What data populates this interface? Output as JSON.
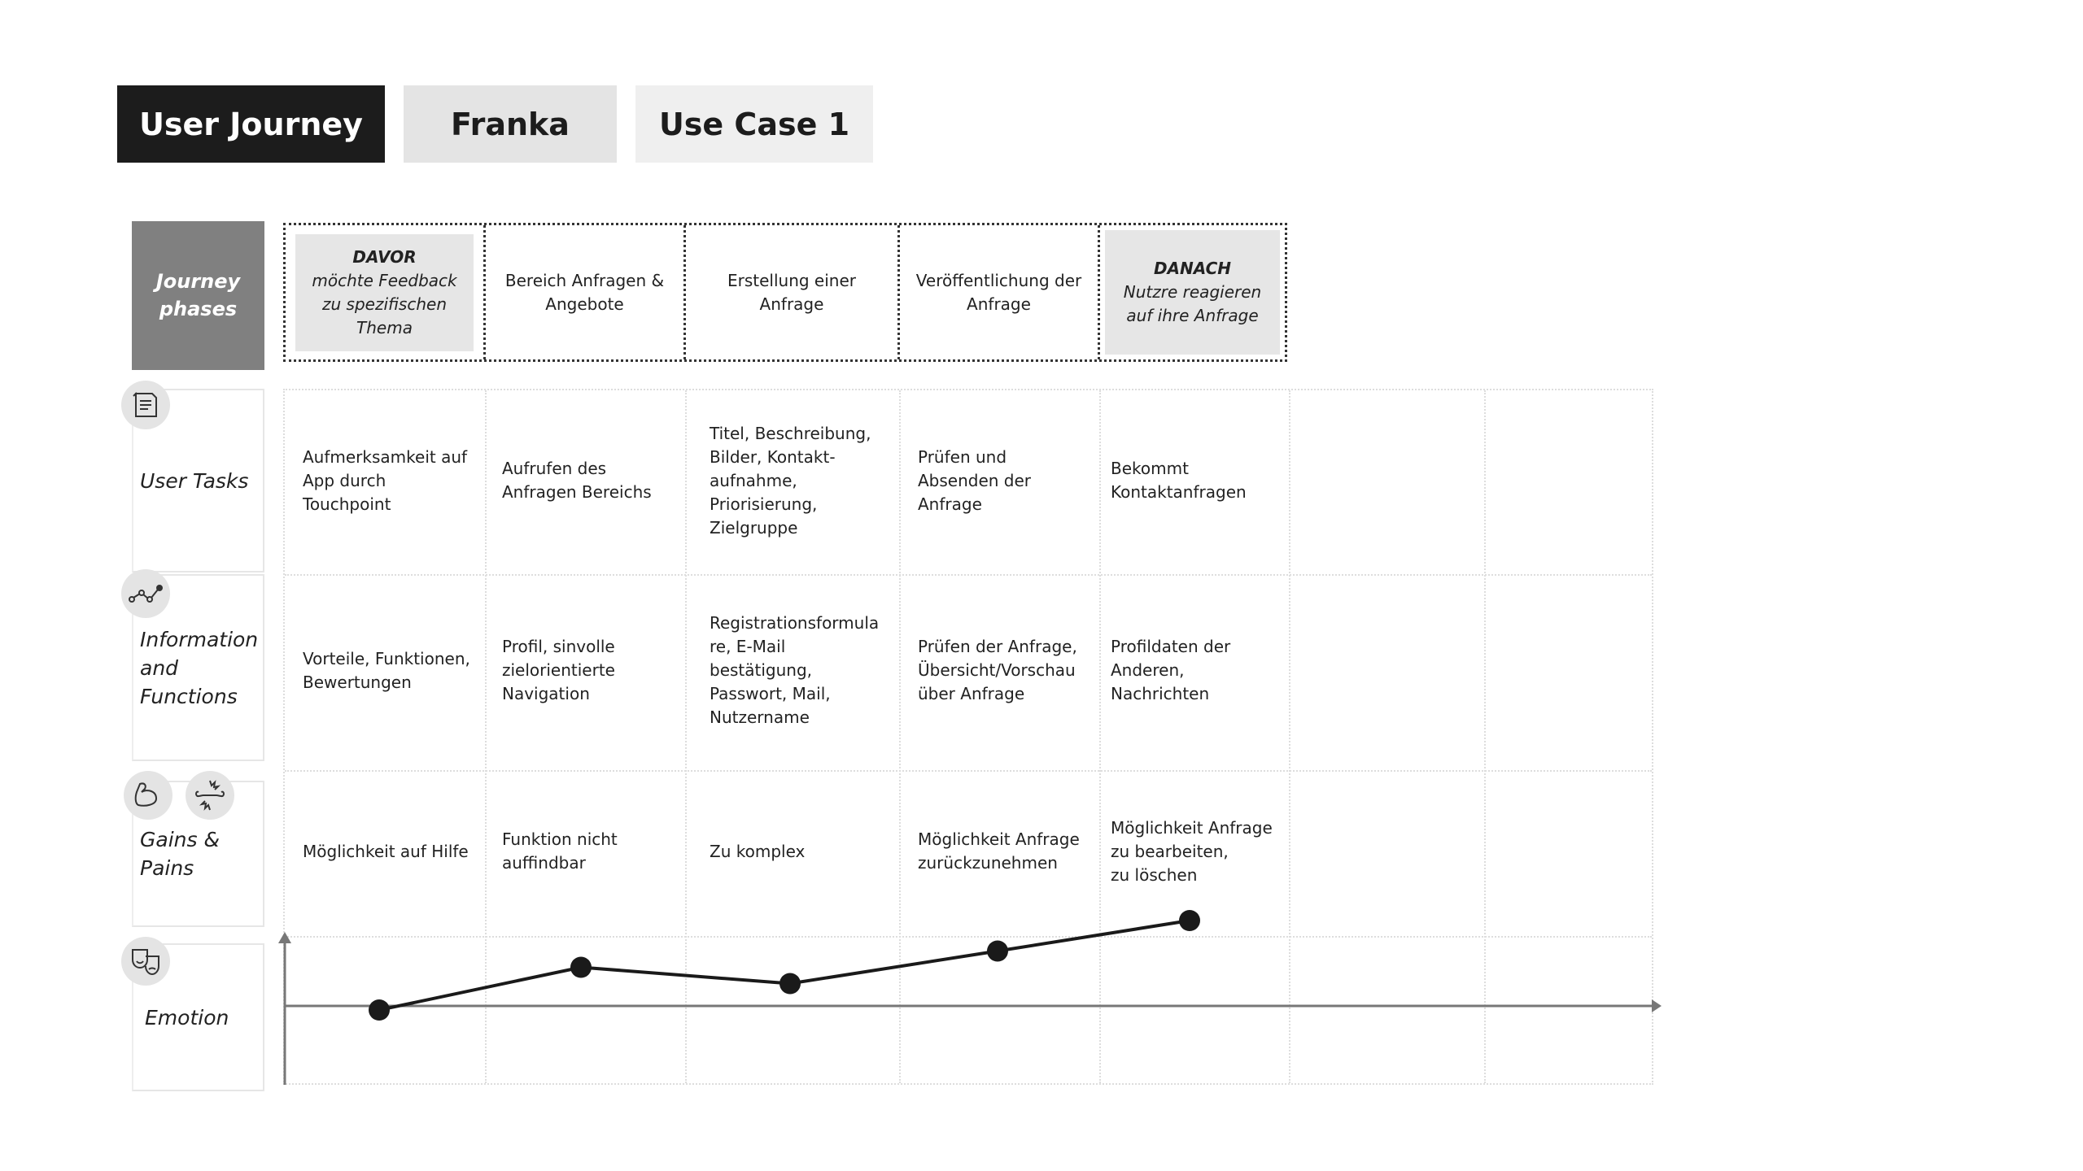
{
  "tabs": [
    {
      "label": "User Journey"
    },
    {
      "label": "Franka"
    },
    {
      "label": "Use Case 1"
    }
  ],
  "phases_label": "Journey phases",
  "phases": [
    {
      "title": "DAVOR",
      "text": "möchte Feedback zu spezifischen Thema"
    },
    {
      "text": "Bereich Anfragen & Angebote"
    },
    {
      "text": "Erstellung einer Anfrage"
    },
    {
      "text": "Veröffentlichung der Anfrage"
    },
    {
      "title": "DANACH",
      "text": "Nutzre reagieren auf ihre Anfrage"
    }
  ],
  "rows": [
    {
      "label": "User Tasks",
      "icon": "notes-icon",
      "cells": [
        "Aufmerksamkeit auf\nApp durch\nTouchpoint",
        "Aufrufen des\nAnfragen Bereichs",
        "Titel, Beschreibung,\nBilder, Kontakt-\naufnahme,\nPriorisierung,\nZielgruppe",
        "Prüfen und\nAbsenden der\nAnfrage",
        "Bekommt\nKontaktanfragen"
      ]
    },
    {
      "label": "Information and Functions",
      "icon": "path-icon",
      "cells": [
        "Vorteile, Funktionen,\nBewertungen",
        "Profil, sinvolle\nzielorientierte\nNavigation",
        "Registrationsformula\nre, E-Mail\nbestätigung,\nPasswort, Mail,\nNutzername",
        "Prüfen der Anfrage,\nÜbersicht/Vorschau\nüber Anfrage",
        "Profildaten der\nAnderen,\nNachrichten"
      ]
    },
    {
      "label": "Gains & Pains",
      "icon": "muscle-icon",
      "cells": [
        "Möglichkeit auf Hilfe",
        "Funktion nicht\nauffindbar",
        "Zu komplex",
        "Möglichkeit Anfrage\nzurückzunehmen",
        "Möglichkeit Anfrage\nzu bearbeiten,\nzu löschen"
      ]
    },
    {
      "label": "Emotion",
      "icon": "theater-masks-icon"
    }
  ],
  "chart_data": {
    "type": "line",
    "categories": [
      "DAVOR",
      "Bereich Anfragen & Angebote",
      "Erstellung einer Anfrage",
      "Veröffentlichung der Anfrage",
      "DANACH"
    ],
    "values": [
      -0.1,
      0.95,
      0.55,
      1.35,
      2.1
    ],
    "xlabel": "",
    "ylabel": ""
  }
}
